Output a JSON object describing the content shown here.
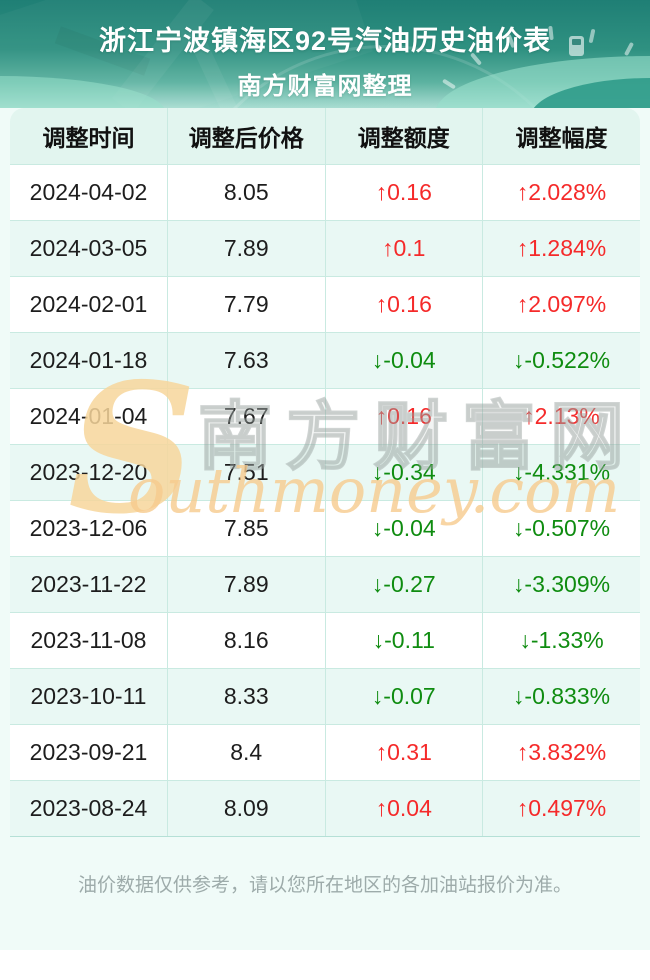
{
  "header": {
    "title": "浙江宁波镇海区92号汽油历史油价表",
    "subtitle": "南方财富网整理"
  },
  "table": {
    "columns": [
      "调整时间",
      "调整后价格",
      "调整额度",
      "调整幅度"
    ],
    "rows": [
      {
        "date": "2024-04-02",
        "price": "8.05",
        "change": "↑0.16",
        "pct": "↑2.028%",
        "dir": "up"
      },
      {
        "date": "2024-03-05",
        "price": "7.89",
        "change": "↑0.1",
        "pct": "↑1.284%",
        "dir": "up"
      },
      {
        "date": "2024-02-01",
        "price": "7.79",
        "change": "↑0.16",
        "pct": "↑2.097%",
        "dir": "up"
      },
      {
        "date": "2024-01-18",
        "price": "7.63",
        "change": "↓-0.04",
        "pct": "↓-0.522%",
        "dir": "down"
      },
      {
        "date": "2024-01-04",
        "price": "7.67",
        "change": "↑0.16",
        "pct": "↑2.13%",
        "dir": "up"
      },
      {
        "date": "2023-12-20",
        "price": "7.51",
        "change": "↓-0.34",
        "pct": "↓-4.331%",
        "dir": "down"
      },
      {
        "date": "2023-12-06",
        "price": "7.85",
        "change": "↓-0.04",
        "pct": "↓-0.507%",
        "dir": "down"
      },
      {
        "date": "2023-11-22",
        "price": "7.89",
        "change": "↓-0.27",
        "pct": "↓-3.309%",
        "dir": "down"
      },
      {
        "date": "2023-11-08",
        "price": "8.16",
        "change": "↓-0.11",
        "pct": "↓-1.33%",
        "dir": "down"
      },
      {
        "date": "2023-10-11",
        "price": "8.33",
        "change": "↓-0.07",
        "pct": "↓-0.833%",
        "dir": "down"
      },
      {
        "date": "2023-09-21",
        "price": "8.4",
        "change": "↑0.31",
        "pct": "↑3.832%",
        "dir": "up"
      },
      {
        "date": "2023-08-24",
        "price": "8.09",
        "change": "↑0.04",
        "pct": "↑0.497%",
        "dir": "up"
      }
    ]
  },
  "watermark": {
    "initial": "S",
    "cjk": "南方财富网",
    "latin": "outhmoney.com"
  },
  "footer": {
    "disclaimer": "油价数据仅供参考，请以您所在地区的各加油站报价为准。"
  },
  "colors": {
    "red": "#f52a2a",
    "green": "#0f8c10",
    "teal-top": "#1f7f75",
    "teal-mid": "#2f9181",
    "teal-light": "#a9ddd2",
    "page-mint": "#f0fbf8",
    "row-mint": "#e9f8f4",
    "head-mint": "#e2f5ef",
    "line": "#c9eae1",
    "text-dark": "#1d1d1d",
    "footer-gray": "#9dabaa",
    "wm-tan": "#f5cf96"
  }
}
